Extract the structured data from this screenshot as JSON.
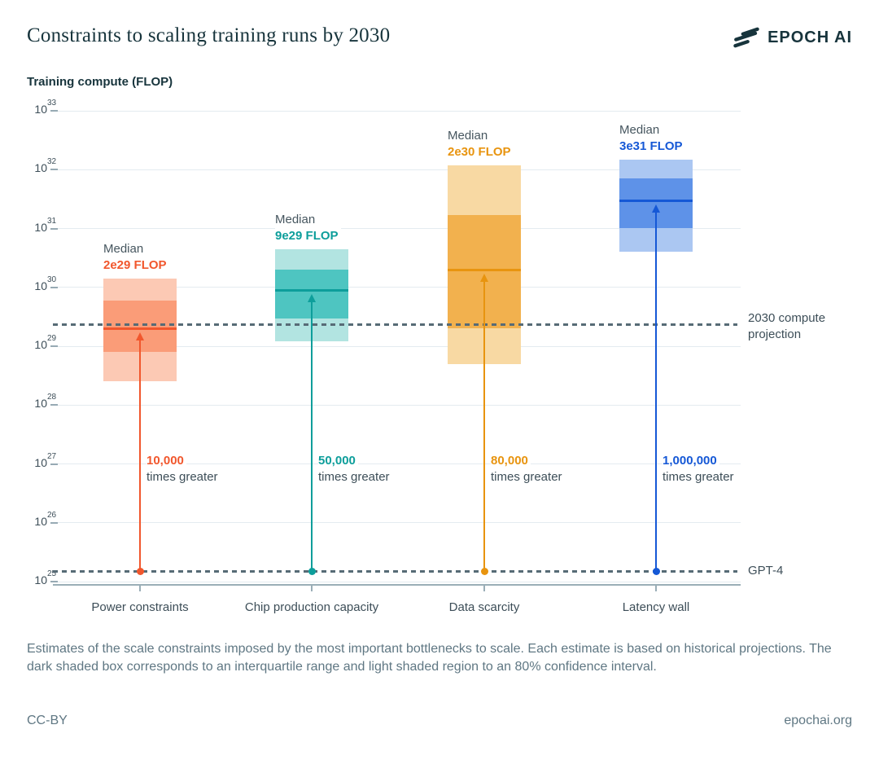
{
  "header": {
    "title": "Constraints to scaling training runs by 2030",
    "brand": "EPOCH AI"
  },
  "axis": {
    "y_title": "Training compute (FLOP)",
    "y_tick_base": "10",
    "y_tick_exponents": [
      33,
      32,
      31,
      30,
      29,
      28,
      27,
      26,
      25
    ]
  },
  "chart_data": {
    "type": "box",
    "title": "Constraints to scaling training runs by 2030",
    "ylabel": "Training compute (FLOP)",
    "yscale": "log10",
    "ylim": [
      1e+25,
      1e+33
    ],
    "grid": "horizontal",
    "legend_note": "dark box = interquartile range, light box = 80% confidence interval",
    "categories": [
      "Power constraints",
      "Chip production capacity",
      "Data scarcity",
      "Latency wall"
    ],
    "median_word": "Median",
    "times_greater_suffix": "times greater",
    "series": [
      {
        "name": "Power constraints",
        "median": 2e+29,
        "median_text": "2e29 FLOP",
        "iqr": [
          8e+28,
          6e+29
        ],
        "ci80": [
          2.5e+28,
          1.4e+30
        ],
        "times_greater": "10,000",
        "accent": "#f1572d",
        "fill_dark": "#fa9c78",
        "fill_light": "#fcc9b4"
      },
      {
        "name": "Chip production capacity",
        "median": 9e+29,
        "median_text": "9e29 FLOP",
        "iqr": [
          3e+29,
          2e+30
        ],
        "ci80": [
          1.2e+29,
          4.5e+30
        ],
        "times_greater": "50,000",
        "accent": "#0d9e9b",
        "fill_dark": "#4ec5c1",
        "fill_light": "#b2e4e1"
      },
      {
        "name": "Data scarcity",
        "median": 2e+30,
        "median_text": "2e30 FLOP",
        "iqr": [
          2e+29,
          1.7e+31
        ],
        "ci80": [
          5e+28,
          1.2e+32
        ],
        "times_greater": "80,000",
        "accent": "#e8940f",
        "fill_dark": "#f2b14e",
        "fill_light": "#f8d9a3"
      },
      {
        "name": "Latency wall",
        "median": 3e+31,
        "median_text": "3e31 FLOP",
        "iqr": [
          1e+31,
          7e+31
        ],
        "ci80": [
          4e+30,
          1.5e+32
        ],
        "times_greater": "1,000,000",
        "accent": "#1558d6",
        "fill_dark": "#5e92e8",
        "fill_light": "#abc7f2"
      }
    ],
    "reference_lines": [
      {
        "id": "projection-2030",
        "value": 2.3e+29,
        "label_lines": [
          "2030 compute",
          "projection"
        ]
      },
      {
        "id": "gpt4",
        "value": 1.5e+25,
        "label_lines": [
          "GPT-4"
        ]
      }
    ]
  },
  "footer": {
    "caption": "Estimates of the scale constraints imposed by the most important bottlenecks to scale. Each estimate is based on historical projections. The dark shaded box corresponds to an interquartile range and light shaded region to an 80% confidence interval.",
    "license": "CC-BY",
    "site": "epochai.org"
  },
  "colors": {
    "text_dark": "#17343c",
    "text_slate": "#3d4e58",
    "text_muted": "#5f7783",
    "gridline": "#e4ebf0",
    "axis_line": "#9aaeb7",
    "dashed_line": "#576b76"
  }
}
